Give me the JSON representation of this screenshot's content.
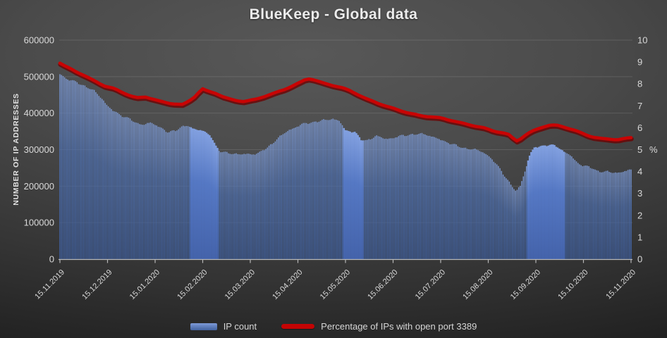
{
  "title": "BlueKeep - Global data",
  "legend": {
    "items": [
      {
        "label": "IP count",
        "color": "#4f76bd",
        "type": "bar"
      },
      {
        "label": "Percentage of IPs with open port 3389",
        "color": "#c40404",
        "type": "line"
      }
    ]
  },
  "colors": {
    "background_center": "#585858",
    "background_edge": "#0f0f0f",
    "bar_top": "#7b97cf",
    "bar_mid": "#4e70b0",
    "bar_bottom": "#3e5d9a",
    "bar_highlight_top": "#82a0e0",
    "bar_highlight_mid": "#5578c4",
    "bar_highlight_bottom": "#4463ab",
    "line": "#c80404",
    "line_shadow": "#6e0303",
    "grid": "rgba(255,255,255,0.12)",
    "axis": "#b8b8b8",
    "tick_text": "#d9d9d9",
    "title_text": "#ececec"
  },
  "chart_data": {
    "type": "combo-bar-line",
    "title": "BlueKeep - Global data",
    "grid": "horizontal-only",
    "legend_position": "bottom-center",
    "x_axis": {
      "tick_labels": [
        "15.11.2019",
        "15.12.2019",
        "15.01.2020",
        "15.02.2020",
        "15.03.2020",
        "15.04.2020",
        "15.05.2020",
        "15.06.2020",
        "15.07.2020",
        "15.08.2020",
        "15.09.2020",
        "15.10.2020",
        "15.11.2020"
      ],
      "span_days": 366
    },
    "y_left": {
      "label": "NUMBER OF IP ADDRESSES",
      "min": 0,
      "max": 600000,
      "tick_step": 100000,
      "tick_labels": [
        "0",
        "100000",
        "200000",
        "300000",
        "400000",
        "500000",
        "600000"
      ]
    },
    "y_right": {
      "label": "%",
      "min": 0,
      "max": 10,
      "tick_step": 1,
      "tick_labels": [
        "0",
        "1",
        "2",
        "3",
        "4",
        "5",
        "6",
        "7",
        "8",
        "9",
        "10"
      ]
    },
    "series": [
      {
        "name": "IP count",
        "type": "bar",
        "axis": "left",
        "values_at_month_ticks": [
          508000,
          420000,
          370000,
          354000,
          288000,
          363000,
          352000,
          332000,
          325000,
          290000,
          306000,
          256000,
          244000
        ],
        "keypoints_frac_value": [
          [
            0,
            508000
          ],
          [
            0.012,
            494000
          ],
          [
            0.028,
            485000
          ],
          [
            0.043,
            475000
          ],
          [
            0.059,
            462000
          ],
          [
            0.074,
            440000
          ],
          [
            0.083,
            420000
          ],
          [
            0.093,
            407000
          ],
          [
            0.105,
            396000
          ],
          [
            0.117,
            388000
          ],
          [
            0.128,
            378000
          ],
          [
            0.137,
            371000
          ],
          [
            0.148,
            370000
          ],
          [
            0.159,
            373000
          ],
          [
            0.17,
            366000
          ],
          [
            0.18,
            358000
          ],
          [
            0.19,
            346000
          ],
          [
            0.202,
            353000
          ],
          [
            0.212,
            362000
          ],
          [
            0.223,
            366000
          ],
          [
            0.231,
            358000
          ],
          [
            0.248,
            354000
          ],
          [
            0.264,
            337000
          ],
          [
            0.274,
            308000
          ],
          [
            0.281,
            296000
          ],
          [
            0.293,
            290000
          ],
          [
            0.316,
            288000
          ],
          [
            0.335,
            287000
          ],
          [
            0.347,
            291000
          ],
          [
            0.363,
            304000
          ],
          [
            0.38,
            330000
          ],
          [
            0.396,
            348000
          ],
          [
            0.412,
            362000
          ],
          [
            0.427,
            371000
          ],
          [
            0.446,
            376000
          ],
          [
            0.464,
            381000
          ],
          [
            0.477,
            385000
          ],
          [
            0.489,
            379000
          ],
          [
            0.5,
            352000
          ],
          [
            0.516,
            350000
          ],
          [
            0.527,
            327000
          ],
          [
            0.538,
            325000
          ],
          [
            0.553,
            338000
          ],
          [
            0.569,
            330000
          ],
          [
            0.585,
            332000
          ],
          [
            0.602,
            340000
          ],
          [
            0.622,
            342000
          ],
          [
            0.64,
            343000
          ],
          [
            0.656,
            333000
          ],
          [
            0.672,
            324000
          ],
          [
            0.689,
            314000
          ],
          [
            0.706,
            305000
          ],
          [
            0.726,
            300000
          ],
          [
            0.743,
            293000
          ],
          [
            0.758,
            271000
          ],
          [
            0.77,
            249000
          ],
          [
            0.783,
            219000
          ],
          [
            0.793,
            196000
          ],
          [
            0.799,
            186000
          ],
          [
            0.806,
            201000
          ],
          [
            0.815,
            246000
          ],
          [
            0.823,
            286000
          ],
          [
            0.831,
            306000
          ],
          [
            0.841,
            310000
          ],
          [
            0.857,
            313000
          ],
          [
            0.872,
            308000
          ],
          [
            0.881,
            296000
          ],
          [
            0.891,
            288000
          ],
          [
            0.902,
            270000
          ],
          [
            0.914,
            257000
          ],
          [
            0.927,
            253000
          ],
          [
            0.94,
            242000
          ],
          [
            0.953,
            240000
          ],
          [
            0.968,
            237000
          ],
          [
            0.98,
            238000
          ],
          [
            0.995,
            243000
          ],
          [
            1.0,
            244000
          ]
        ]
      },
      {
        "name": "Percentage of IPs with open port 3389",
        "type": "line",
        "axis": "right",
        "values_at_month_ticks": [
          8.95,
          7.88,
          7.28,
          7.78,
          7.24,
          7.98,
          7.85,
          6.9,
          6.45,
          5.93,
          5.9,
          5.76,
          5.55
        ],
        "keypoints_frac_value": [
          [
            0,
            8.95
          ],
          [
            0.009,
            8.8
          ],
          [
            0.02,
            8.68
          ],
          [
            0.035,
            8.48
          ],
          [
            0.048,
            8.3
          ],
          [
            0.064,
            8.1
          ],
          [
            0.08,
            7.88
          ],
          [
            0.096,
            7.78
          ],
          [
            0.111,
            7.6
          ],
          [
            0.126,
            7.42
          ],
          [
            0.137,
            7.36
          ],
          [
            0.149,
            7.42
          ],
          [
            0.16,
            7.33
          ],
          [
            0.173,
            7.22
          ],
          [
            0.188,
            7.14
          ],
          [
            0.202,
            7.08
          ],
          [
            0.214,
            7.05
          ],
          [
            0.225,
            7.2
          ],
          [
            0.237,
            7.44
          ],
          [
            0.249,
            7.78
          ],
          [
            0.259,
            7.66
          ],
          [
            0.273,
            7.58
          ],
          [
            0.288,
            7.38
          ],
          [
            0.304,
            7.26
          ],
          [
            0.322,
            7.2
          ],
          [
            0.341,
            7.28
          ],
          [
            0.359,
            7.44
          ],
          [
            0.378,
            7.6
          ],
          [
            0.395,
            7.77
          ],
          [
            0.411,
            7.95
          ],
          [
            0.423,
            8.1
          ],
          [
            0.433,
            8.25
          ],
          [
            0.444,
            8.2
          ],
          [
            0.459,
            8.05
          ],
          [
            0.475,
            7.95
          ],
          [
            0.491,
            7.85
          ],
          [
            0.509,
            7.68
          ],
          [
            0.523,
            7.5
          ],
          [
            0.538,
            7.3
          ],
          [
            0.557,
            7.12
          ],
          [
            0.575,
            6.95
          ],
          [
            0.594,
            6.8
          ],
          [
            0.612,
            6.66
          ],
          [
            0.631,
            6.55
          ],
          [
            0.649,
            6.5
          ],
          [
            0.668,
            6.44
          ],
          [
            0.686,
            6.33
          ],
          [
            0.705,
            6.2
          ],
          [
            0.723,
            6.1
          ],
          [
            0.741,
            6.0
          ],
          [
            0.758,
            5.86
          ],
          [
            0.773,
            5.78
          ],
          [
            0.785,
            5.7
          ],
          [
            0.795,
            5.48
          ],
          [
            0.802,
            5.38
          ],
          [
            0.81,
            5.58
          ],
          [
            0.82,
            5.74
          ],
          [
            0.832,
            5.9
          ],
          [
            0.847,
            6.05
          ],
          [
            0.859,
            6.12
          ],
          [
            0.872,
            6.1
          ],
          [
            0.884,
            6.03
          ],
          [
            0.899,
            5.9
          ],
          [
            0.911,
            5.78
          ],
          [
            0.923,
            5.66
          ],
          [
            0.936,
            5.56
          ],
          [
            0.948,
            5.5
          ],
          [
            0.964,
            5.48
          ],
          [
            0.977,
            5.45
          ],
          [
            0.989,
            5.5
          ],
          [
            1.0,
            5.55
          ]
        ]
      }
    ],
    "highlight_blocks_frac": [
      [
        0.228,
        0.277
      ],
      [
        0.497,
        0.532
      ],
      [
        0.818,
        0.883
      ]
    ]
  }
}
